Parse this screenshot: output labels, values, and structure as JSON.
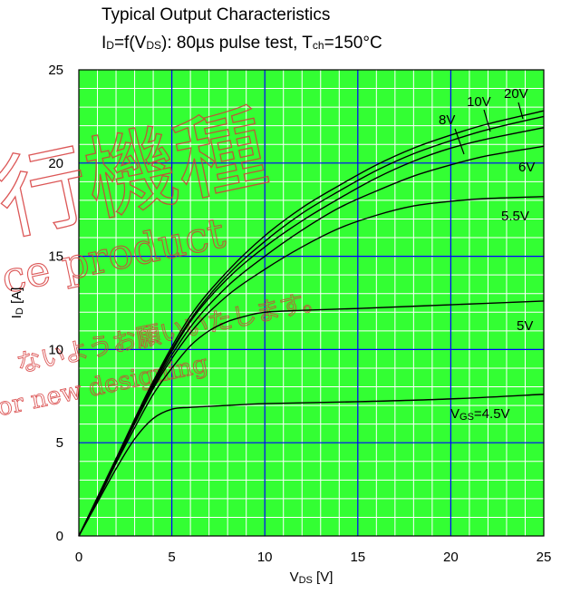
{
  "title": {
    "line1": "Typical Output Characteristics",
    "line2_i": "I",
    "line2_d": "D",
    "line2_f": "=f(V",
    "line2_ds": "DS",
    "line2_rest": "): 80µs pulse test, T",
    "line2_ch": "ch",
    "line2_end": "=150°C"
  },
  "watermark": {
    "big": "行機種",
    "product": "ce product",
    "jp": "ないようお願いいたします。",
    "design": "or new designing"
  },
  "chart_data": {
    "type": "line",
    "xlim": [
      0,
      25
    ],
    "ylim": [
      0,
      25
    ],
    "xticks": [
      "0",
      "5",
      "10",
      "15",
      "20",
      "25"
    ],
    "yticks": [
      "0",
      "5",
      "10",
      "15",
      "20",
      "25"
    ],
    "xlabel": {
      "main": "V",
      "sub": "DS",
      "unit": " [V]"
    },
    "ylabel": {
      "main": "I",
      "sub": "D",
      "unit": " [A]"
    },
    "grid": {
      "major_step": 5,
      "minor_step": 1
    },
    "series": [
      {
        "name": "4.5V",
        "label_prefix": "V",
        "label_sub": "GS",
        "label_text": "=4.5V",
        "x": [
          0,
          1,
          2,
          3,
          4,
          5,
          6,
          8,
          10,
          15,
          20,
          25
        ],
        "y": [
          0,
          1.8,
          3.6,
          5.2,
          6.3,
          6.8,
          6.9,
          7.0,
          7.1,
          7.2,
          7.35,
          7.6
        ]
      },
      {
        "name": "5V",
        "label_text": "5V",
        "x": [
          0,
          1,
          2,
          3,
          4,
          5,
          6,
          7,
          8,
          9,
          10,
          12,
          15,
          20,
          25
        ],
        "y": [
          0,
          1.9,
          3.9,
          5.8,
          7.6,
          9.0,
          10.2,
          11.0,
          11.5,
          11.8,
          12.0,
          12.1,
          12.2,
          12.4,
          12.6
        ]
      },
      {
        "name": "5.5V",
        "label_text": "5.5V",
        "x": [
          0,
          2,
          4,
          6,
          8,
          10,
          12,
          14,
          16,
          18,
          20,
          22,
          25
        ],
        "y": [
          0,
          4.0,
          7.9,
          10.9,
          12.9,
          14.3,
          15.5,
          16.5,
          17.2,
          17.7,
          17.95,
          18.1,
          18.2
        ]
      },
      {
        "name": "6V",
        "label_text": "6V",
        "x": [
          0,
          2,
          4,
          6,
          8,
          10,
          12,
          14,
          16,
          18,
          20,
          22,
          25
        ],
        "y": [
          0,
          4.0,
          8.0,
          11.2,
          13.4,
          15.0,
          16.4,
          17.6,
          18.5,
          19.3,
          19.9,
          20.4,
          20.9
        ]
      },
      {
        "name": "8V",
        "label_text": "8V",
        "x": [
          0,
          2,
          4,
          6,
          8,
          10,
          12,
          14,
          16,
          18,
          20,
          22,
          25
        ],
        "y": [
          0,
          4.05,
          8.1,
          11.5,
          13.8,
          15.5,
          16.9,
          18.1,
          19.2,
          20.1,
          20.8,
          21.3,
          21.9
        ]
      },
      {
        "name": "10V",
        "label_text": "10V",
        "x": [
          0,
          2,
          4,
          6,
          8,
          10,
          12,
          14,
          16,
          18,
          20,
          22,
          25
        ],
        "y": [
          0,
          4.1,
          8.2,
          11.6,
          14.0,
          15.8,
          17.3,
          18.5,
          19.6,
          20.5,
          21.2,
          21.8,
          22.5
        ]
      },
      {
        "name": "20V",
        "label_text": "20V",
        "x": [
          0,
          2,
          4,
          6,
          8,
          10,
          12,
          14,
          16,
          18,
          20,
          22,
          25
        ],
        "y": [
          0,
          4.15,
          8.3,
          11.8,
          14.2,
          16.1,
          17.6,
          18.8,
          19.9,
          20.8,
          21.5,
          22.1,
          22.8
        ]
      }
    ]
  }
}
